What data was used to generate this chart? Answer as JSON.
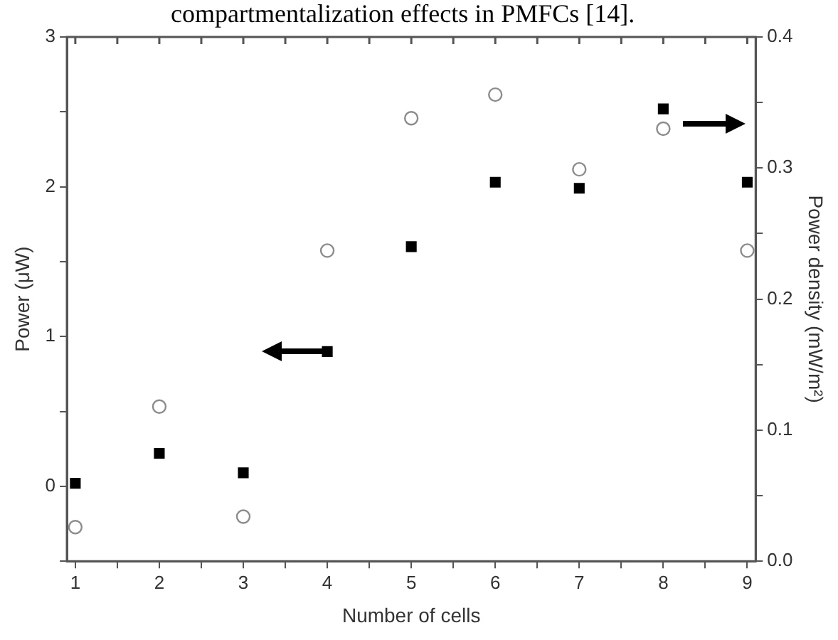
{
  "chart_data": {
    "type": "scatter",
    "xlabel": "Number of cells",
    "ylabel": "Power (μW)",
    "y2label": "Power density (mW/m²)",
    "annotations": [
      "compartmentalization effects in PMFCs [14]."
    ],
    "x": [
      1,
      2,
      3,
      4,
      5,
      6,
      7,
      8,
      9
    ],
    "series": [
      {
        "color": "#000000",
        "marker": "square",
        "values": [
          0.02,
          0.22,
          0.09,
          0.9,
          1.6,
          2.03,
          1.99,
          2.52,
          2.03
        ]
      },
      {
        "color": "#8c8c8c",
        "marker": "circle",
        "axis": "y2",
        "values": [
          0.026,
          0.118,
          0.034,
          0.237,
          0.338,
          0.356,
          0.299,
          0.33,
          0.237
        ]
      }
    ],
    "xlim": [
      0.9,
      9.1
    ],
    "xticks": [
      1,
      {
        "value": 1.5,
        "label": null
      },
      2,
      {
        "value": 2.5,
        "label": null
      },
      3,
      {
        "value": 3.5,
        "label": null
      },
      4,
      {
        "value": 4.5,
        "label": null
      },
      5,
      {
        "value": 5.5,
        "label": null
      },
      6,
      {
        "value": 6.5,
        "label": null
      },
      7,
      {
        "value": 7.5,
        "label": null
      },
      8,
      {
        "value": 8.5,
        "label": null
      },
      9
    ],
    "ylim": [
      -0.5,
      3
    ],
    "yticks": [
      {
        "value": -0.5,
        "label": null
      },
      0,
      {
        "value": 0.5,
        "label": null
      },
      1,
      {
        "value": 1.5,
        "label": null
      },
      2,
      {
        "value": 2.5,
        "label": null
      },
      3
    ],
    "y2lim": [
      0,
      0.4
    ],
    "y2ticks": [
      {
        "value": 0,
        "label": "0.0"
      },
      {
        "value": 0.05,
        "label": null
      },
      0.1,
      {
        "value": 0.15,
        "label": null
      },
      0.2,
      {
        "value": 0.25,
        "label": null
      },
      0.3,
      {
        "value": 0.35,
        "label": null
      },
      0.4
    ],
    "grid": false,
    "legend": false
  }
}
